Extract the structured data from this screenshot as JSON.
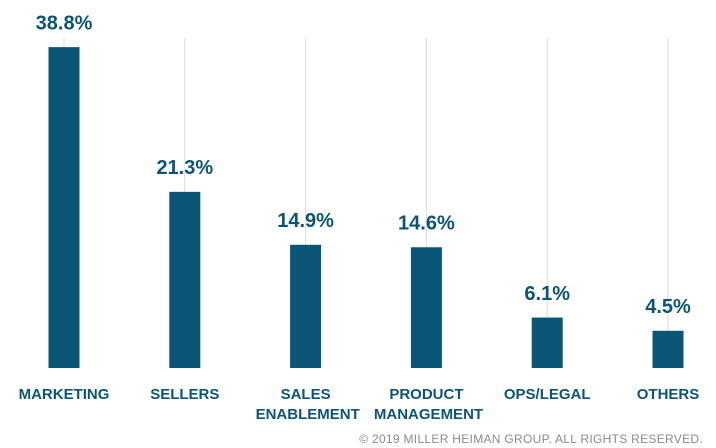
{
  "chart_data": {
    "type": "bar",
    "categories": [
      "MARKETING",
      "SELLERS",
      "SALES ENABLEMENT",
      "PRODUCT MANAGEMENT",
      "OPS/LEGAL",
      "OTHERS"
    ],
    "values": [
      38.8,
      21.3,
      14.9,
      14.6,
      6.1,
      4.5
    ],
    "value_labels": [
      "38.8%",
      "21.3%",
      "14.9%",
      "14.6%",
      "6.1%",
      "4.5%"
    ],
    "color": "#0b5576",
    "grid": true,
    "footnote": "© 2019 MILLER HEIMAN GROUP. ALL RIGHTS RESERVED."
  }
}
